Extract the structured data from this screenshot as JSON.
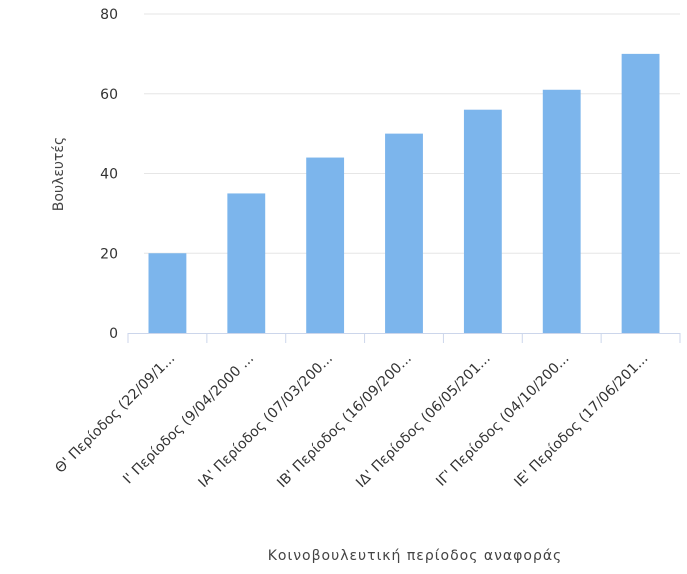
{
  "chart_data": {
    "type": "bar",
    "categories": [
      "Θ' Περίοδος (22/09/1...",
      "Ι' Περίοδος (9/04/2000 ...",
      "ΙΑ' Περίοδος (07/03/200...",
      "ΙΒ' Περίοδος (16/09/200...",
      "ΙΔ' Περίοδος (06/05/201...",
      "ΙΓ' Περίοδος (04/10/200...",
      "ΙΕ' Περίοδος (17/06/201..."
    ],
    "values": [
      20,
      35,
      44,
      50,
      56,
      61,
      70
    ],
    "xlabel": "Κοινοβουλευτική περίοδος αναφοράς",
    "ylabel": "Βουλευτές",
    "ylim": [
      0,
      80
    ],
    "yticks": [
      0,
      20,
      40,
      60,
      80
    ],
    "grid": true,
    "bar_color": "#7cb5ec",
    "grid_color": "#e6e6e6",
    "axis_color": "#ccd6eb"
  }
}
